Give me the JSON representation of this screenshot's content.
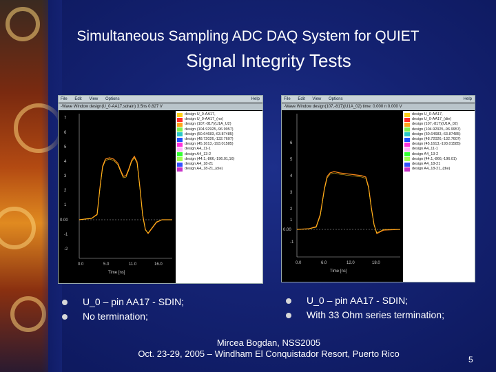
{
  "slide": {
    "title_line1": "Simultaneous Sampling ADC DAQ System for QUIET",
    "title_line2": "Signal Integrity Tests",
    "footer_line1": "Mircea Bogdan, NSS2005",
    "footer_line2": "Oct. 23-29, 2005 – Windham El Conquistador Resort, Puerto Rico",
    "page_number": "5"
  },
  "left_panel": {
    "menu": [
      "File",
      "Edit",
      "View",
      "Options"
    ],
    "help": "Help",
    "toolbar_text": "-Wave Window    design(U_0-AA17,sdrain)   3.5ns  0.827 V",
    "xlabel": "Time [ns]",
    "x_ticks": [
      "0.0",
      "5.0",
      "11.0",
      "16.0"
    ],
    "y_ticks": [
      "7",
      "6",
      "5",
      "4",
      "3",
      "2",
      "1",
      "0.00",
      "-1",
      "-2"
    ],
    "bullets": [
      "U_0 – pin AA17 - SDIN;",
      "No termination;"
    ],
    "legend": [
      {
        "text": "design  U_0-AA17,",
        "color": "#ffd21a"
      },
      {
        "text": "design  U_0-AA17_(no)",
        "color": "#ff2c2c"
      },
      {
        "text": "design  (107,-817)(U1A_U2)",
        "color": "#ffa51a"
      },
      {
        "text": "design  (104.92925,-96.9957)",
        "color": "#7df050"
      },
      {
        "text": "design  (50.64683,-63.87485)",
        "color": "#28c8c8"
      },
      {
        "text": "design  (48.72026,-132.7607)",
        "color": "#1e50ff"
      },
      {
        "text": "design  (45.1613,-193.01585)",
        "color": "#ff32dc"
      },
      {
        "text": "design  A4_11-1",
        "color": "#ffb4ff"
      },
      {
        "text": "design  A4_13-2",
        "color": "#32ff32"
      },
      {
        "text": "design  (44.1,-866,-196.01,16)",
        "color": "#a0ff50"
      },
      {
        "text": "design  A4_18-21",
        "color": "#3250ff"
      },
      {
        "text": "design  A4_18-21_(die)",
        "color": "#c832c8"
      }
    ]
  },
  "right_panel": {
    "menu": [
      "File",
      "Edit",
      "View",
      "Options"
    ],
    "help": "Help",
    "toolbar_text": "-Wave Window  design(107,-817)(U1A_02)  time: 0.000 n  0.000 V",
    "xlabel": "Time [ns]",
    "x_ticks": [
      "0.0",
      "6.0",
      "12.0",
      "18.0"
    ],
    "y_ticks": [
      "6",
      "5",
      "4",
      "3",
      "2",
      "1",
      "0.00",
      "-1"
    ],
    "bullets": [
      "U_0 – pin AA17 - SDIN;",
      "With 33 Ohm series termination;"
    ],
    "legend": [
      {
        "text": "design  U_0-AA17,",
        "color": "#ffd21a"
      },
      {
        "text": "design  U_0-AA17_(die)",
        "color": "#ff2c2c"
      },
      {
        "text": "design  (107,-817)(U1A_02)",
        "color": "#ffa51a"
      },
      {
        "text": "design  (104.92925,-96.9957)",
        "color": "#7df050"
      },
      {
        "text": "design  (50.64683,-63.87485)",
        "color": "#28c8c8"
      },
      {
        "text": "design  (48.72026,-132.7607)",
        "color": "#1e50ff"
      },
      {
        "text": "design  (45.1613,-193.01585)",
        "color": "#ff32dc"
      },
      {
        "text": "design  A4_11-1",
        "color": "#ffb4ff"
      },
      {
        "text": "design  A4_13-2",
        "color": "#32ff32"
      },
      {
        "text": "design  (44.1,-866,-196.01)",
        "color": "#a0ff50"
      },
      {
        "text": "design  A4_18-21",
        "color": "#3250ff"
      },
      {
        "text": "design  A4_18-21_(die)",
        "color": "#c832c8"
      }
    ]
  }
}
